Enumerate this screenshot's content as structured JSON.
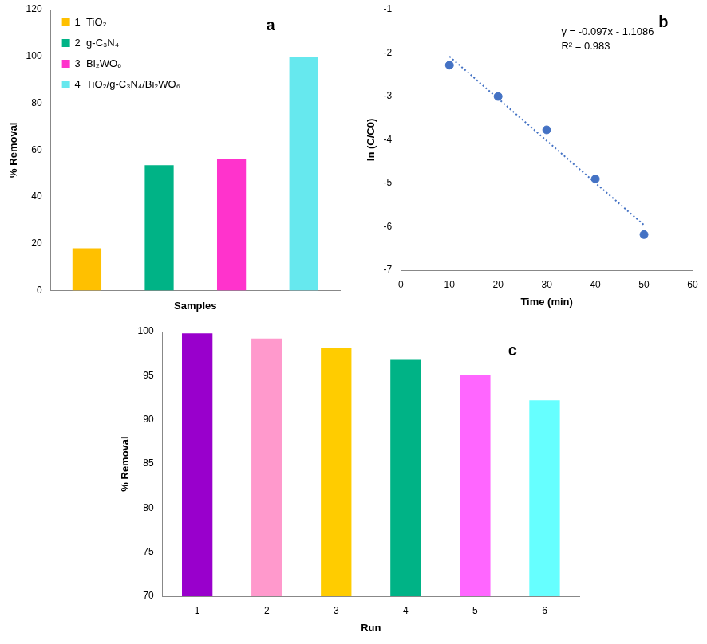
{
  "chart_data": [
    {
      "type": "bar",
      "panel_label": "a",
      "x_label": "Samples",
      "y_label": "% Removal",
      "categories": [
        "1  TiO₂",
        "2  g-C₃N₄",
        "3  Bi₂WO₆",
        "4  TiO₂/g-C₃N₄/Bi₂WO₆"
      ],
      "values": [
        18,
        53.5,
        56,
        99.8
      ],
      "colors": [
        "#ffc000",
        "#00b386",
        "#ff33cc",
        "#66e8ee"
      ],
      "ylim": [
        0,
        120
      ],
      "yticks": [
        0,
        20,
        40,
        60,
        80,
        100,
        120
      ],
      "grid": false,
      "legend": "top-left",
      "tick_labels": "y"
    },
    {
      "type": "scatter",
      "panel_label": "b",
      "x_label": "Time (min)",
      "y_label": "ln (C/C0)",
      "annotations": [
        "y = -0.097x - 1.1086",
        "R² = 0.983"
      ],
      "series": [
        {
          "type": "scatter",
          "color": "#4472c4",
          "marker": "circle",
          "x": [
            10,
            20,
            30,
            40,
            50
          ],
          "values": [
            -2.28,
            -3.0,
            -3.77,
            -4.9,
            -6.18
          ]
        },
        {
          "type": "line",
          "color": "#4472c4",
          "line_style": "dotted",
          "x": [
            10,
            50
          ],
          "values": [
            -2.08,
            -5.96
          ]
        }
      ],
      "xlim": [
        0,
        60
      ],
      "xticks": [
        0,
        10,
        20,
        30,
        40,
        50,
        60
      ],
      "ylim": [
        -7,
        -1
      ],
      "yticks": [
        -7,
        -6,
        -5,
        -4,
        -3,
        -2,
        -1
      ],
      "grid": false
    },
    {
      "type": "bar",
      "panel_label": "c",
      "x_label": "Run",
      "y_label": "% Removal",
      "categories": [
        "1",
        "2",
        "3",
        "4",
        "5",
        "6"
      ],
      "values": [
        99.8,
        99.2,
        98.1,
        96.8,
        95.1,
        92.2
      ],
      "colors": [
        "#9900cc",
        "#ff99cc",
        "#ffcc00",
        "#00b386",
        "#ff66ff",
        "#66ffff"
      ],
      "ylim": [
        70,
        100
      ],
      "yticks": [
        70,
        75,
        80,
        85,
        90,
        95,
        100
      ],
      "grid": false
    }
  ]
}
